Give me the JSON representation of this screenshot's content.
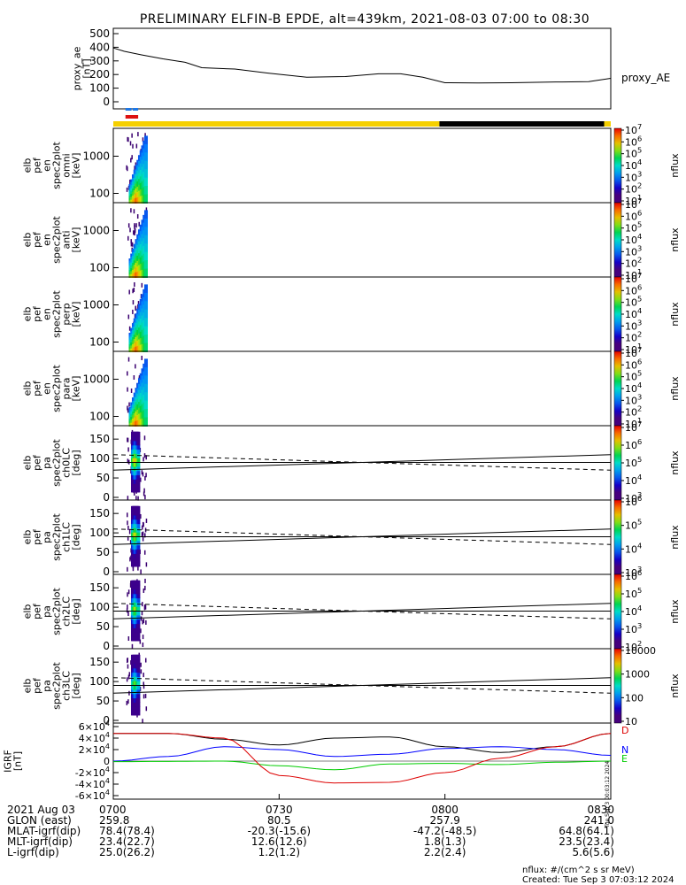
{
  "title": "PRELIMINARY ELFIN-B EPDE, alt=439km, 2021-08-03 07:00 to 08:30",
  "footer": {
    "units": "nflux: #/(cm^2 s sr MeV)",
    "created": "Created: Tue Sep  3 07:03:12 2024",
    "stamp": "Tue Sep  3 00:03:12 2024"
  },
  "ephemeris": {
    "rows": [
      {
        "label": "2021 Aug 03",
        "values": [
          "0700",
          "0730",
          "0800",
          "0830"
        ]
      },
      {
        "label": "GLON (east)",
        "values": [
          "259.8",
          "80.5",
          "257.9",
          "241.0"
        ]
      },
      {
        "label": "MLAT-igrf(dip)",
        "values": [
          "78.4(78.4)",
          "-20.3(-15.6)",
          "-47.2(-48.5)",
          "64.8(64.1)"
        ]
      },
      {
        "label": "MLT-igrf(dip)",
        "values": [
          "23.4(22.7)",
          "12.6(12.6)",
          "1.8(1.3)",
          "23.5(23.4)"
        ]
      },
      {
        "label": "L-igrf(dip)",
        "values": [
          "25.0(26.2)",
          "1.2(1.2)",
          "2.2(2.4)",
          "5.6(5.6)"
        ]
      }
    ]
  },
  "chart_data": [
    {
      "type": "line",
      "name": "proxy_ae",
      "ylabel": "proxy_ae [nT]",
      "series_label": "proxy_AE",
      "x_range": [
        "07:00",
        "08:30"
      ],
      "ylim": [
        0,
        500
      ],
      "yticks": [
        "0",
        "100",
        "200",
        "300",
        "400",
        "500"
      ],
      "x": [
        0,
        2,
        5,
        9,
        13,
        16,
        22,
        28,
        35,
        42,
        48,
        52,
        56,
        60,
        66,
        72,
        80,
        86,
        90
      ],
      "values": [
        395,
        370,
        345,
        315,
        290,
        250,
        240,
        210,
        180,
        185,
        205,
        205,
        180,
        140,
        138,
        140,
        145,
        148,
        172
      ]
    },
    {
      "type": "heatmap",
      "name": "elb pef en spec2plot omni",
      "ylabel": "elb pef en spec2plot omni [keV]",
      "yscale": "log",
      "ytick_labels": [
        "100",
        "1000"
      ],
      "colorbar": {
        "label": "nflux",
        "ticks": [
          "10^1",
          "10^2",
          "10^3",
          "10^4",
          "10^5",
          "10^6",
          "10^7"
        ]
      },
      "active_interval_min": [
        2.2,
        4.5
      ]
    },
    {
      "type": "heatmap",
      "name": "elb pef en spec2plot anti",
      "ylabel": "elb pef en spec2plot anti [keV]",
      "yscale": "log",
      "ytick_labels": [
        "100",
        "1000"
      ],
      "colorbar": {
        "label": "nflux",
        "ticks": [
          "10^1",
          "10^2",
          "10^3",
          "10^4",
          "10^5",
          "10^6",
          "10^7"
        ]
      },
      "active_interval_min": [
        2.2,
        4.5
      ]
    },
    {
      "type": "heatmap",
      "name": "elb pef en spec2plot perp",
      "ylabel": "elb pef en spec2plot perp [keV]",
      "yscale": "log",
      "ytick_labels": [
        "100",
        "1000"
      ],
      "colorbar": {
        "label": "nflux",
        "ticks": [
          "10^1",
          "10^2",
          "10^3",
          "10^4",
          "10^5",
          "10^6",
          "10^7"
        ]
      },
      "active_interval_min": [
        2.2,
        4.5
      ]
    },
    {
      "type": "heatmap",
      "name": "elb pef en spec2plot para",
      "ylabel": "elb pef en spec2plot para [keV]",
      "yscale": "log",
      "ytick_labels": [
        "100",
        "1000"
      ],
      "colorbar": {
        "label": "nflux",
        "ticks": [
          "10^1",
          "10^2",
          "10^3",
          "10^4",
          "10^5",
          "10^6",
          "10^7"
        ]
      },
      "active_interval_min": [
        2.2,
        4.5
      ]
    },
    {
      "type": "heatmap",
      "name": "elb pef pa spec2plot ch0LC",
      "ylabel": "elb pef pa spec2plot ch0LC [deg]",
      "ylim": [
        0,
        180
      ],
      "yticks": [
        "0",
        "50",
        "100",
        "150"
      ],
      "colorbar": {
        "label": "nflux",
        "ticks": [
          "10^3",
          "10^4",
          "10^5",
          "10^6",
          "10^7"
        ]
      },
      "overlay_lines_deg": {
        "solid": [
          [
            70,
            110
          ],
          [
            90,
            90
          ]
        ],
        "dashed": [
          [
            110,
            70
          ]
        ]
      }
    },
    {
      "type": "heatmap",
      "name": "elb pef pa spec2plot ch1LC",
      "ylabel": "elb pef pa spec2plot ch1LC [deg]",
      "ylim": [
        0,
        180
      ],
      "yticks": [
        "0",
        "50",
        "100",
        "150"
      ],
      "colorbar": {
        "label": "nflux",
        "ticks": [
          "10^3",
          "10^4",
          "10^5",
          "10^6"
        ]
      },
      "overlay_lines_deg": {
        "solid": [
          [
            70,
            110
          ],
          [
            90,
            90
          ]
        ],
        "dashed": [
          [
            110,
            70
          ]
        ]
      }
    },
    {
      "type": "heatmap",
      "name": "elb pef pa spec2plot ch2LC",
      "ylabel": "elb pef pa spec2plot ch2LC [deg]",
      "ylim": [
        0,
        180
      ],
      "yticks": [
        "0",
        "50",
        "100",
        "150"
      ],
      "colorbar": {
        "label": "nflux",
        "ticks": [
          "10^2",
          "10^3",
          "10^4",
          "10^5",
          "10^6"
        ]
      },
      "overlay_lines_deg": {
        "solid": [
          [
            70,
            110
          ],
          [
            90,
            90
          ]
        ],
        "dashed": [
          [
            110,
            70
          ]
        ]
      }
    },
    {
      "type": "heatmap",
      "name": "elb pef pa spec2plot ch3LC",
      "ylabel": "elb pef pa spec2plot ch3LC [deg]",
      "ylim": [
        0,
        180
      ],
      "yticks": [
        "0",
        "50",
        "100",
        "150"
      ],
      "colorbar": {
        "label": "nflux",
        "ticks": [
          "10",
          "100",
          "1000",
          "10000"
        ]
      },
      "overlay_lines_deg": {
        "solid": [
          [
            70,
            110
          ],
          [
            90,
            90
          ]
        ],
        "dashed": [
          [
            110,
            70
          ]
        ]
      }
    },
    {
      "type": "line",
      "name": "IGRF",
      "ylabel": "IGRF [nT]",
      "ylim": [
        -60000,
        60000
      ],
      "yticks": [
        "-6x10^4",
        "-4x10^4",
        "-2x10^4",
        "0",
        "2x10^4",
        "4x10^4",
        "6x10^4"
      ],
      "series": [
        {
          "name": "D",
          "color": "#000000",
          "x": [
            0,
            10,
            20,
            30,
            40,
            50,
            60,
            70,
            80,
            90
          ],
          "values": [
            48000,
            48000,
            38000,
            28000,
            40000,
            42000,
            25000,
            15000,
            25000,
            48000
          ]
        },
        {
          "name": "N",
          "color": "#0000ff",
          "x": [
            0,
            10,
            20,
            30,
            40,
            50,
            60,
            70,
            80,
            90
          ],
          "values": [
            0,
            8000,
            25000,
            20000,
            8000,
            12000,
            22000,
            25000,
            20000,
            10000
          ]
        },
        {
          "name": "E",
          "color": "#00cc00",
          "x": [
            0,
            10,
            20,
            30,
            40,
            50,
            60,
            70,
            80,
            90
          ],
          "values": [
            -1000,
            -500,
            0,
            -8000,
            -15000,
            -5000,
            -4000,
            -6000,
            -2000,
            0
          ]
        },
        {
          "name": "",
          "color": "#dd0000",
          "x": [
            0,
            10,
            20,
            30,
            40,
            50,
            60,
            70,
            80,
            90
          ],
          "values": [
            48000,
            48000,
            40000,
            -25000,
            -38000,
            -37000,
            -20000,
            5000,
            25000,
            48000
          ]
        }
      ]
    }
  ]
}
